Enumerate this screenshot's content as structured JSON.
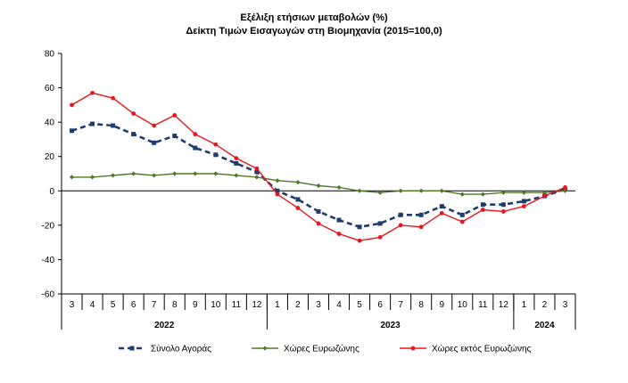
{
  "chart_data": {
    "type": "line",
    "title": "Εξέλιξη ετήσιων μεταβολών (%)",
    "subtitle": "Δείκτη Τιμών Εισαγωγών στη Βιομηχανία (2015=100,0)",
    "xlabel": "",
    "ylabel": "",
    "ylim": [
      -60,
      80
    ],
    "yticks": [
      -60,
      -40,
      -20,
      0,
      20,
      40,
      60,
      80
    ],
    "grid": false,
    "legend_position": "bottom",
    "categories": [
      "3",
      "4",
      "5",
      "6",
      "7",
      "8",
      "9",
      "10",
      "11",
      "12",
      "1",
      "2",
      "3",
      "4",
      "5",
      "6",
      "7",
      "8",
      "9",
      "10",
      "11",
      "12",
      "1",
      "2",
      "3"
    ],
    "year_groups": [
      {
        "label": "2022",
        "start": 0,
        "end": 9
      },
      {
        "label": "2023",
        "start": 10,
        "end": 21
      },
      {
        "label": "2024",
        "start": 22,
        "end": 24
      }
    ],
    "series": [
      {
        "name": "Σύνολο Αγοράς",
        "color": "#1f3c6e",
        "style": "dashed",
        "marker": "square",
        "values": [
          35,
          39,
          38,
          33,
          28,
          32,
          25,
          21,
          16,
          11,
          0,
          -5,
          -12,
          -17,
          -21,
          -19,
          -14,
          -14,
          -9,
          -14,
          -8,
          -8,
          -6,
          -3,
          1
        ]
      },
      {
        "name": "Χώρες Ευρωζώνης",
        "color": "#4f7a28",
        "style": "solid",
        "marker": "diamond",
        "values": [
          8,
          8,
          9,
          10,
          9,
          10,
          10,
          10,
          9,
          8,
          6,
          5,
          3,
          2,
          0,
          -1,
          0,
          0,
          0,
          -2,
          -2,
          -1,
          -1,
          -1,
          0
        ]
      },
      {
        "name": "Χώρες εκτός Ευρωζώνης",
        "color": "#e8161e",
        "style": "solid",
        "marker": "circle",
        "values": [
          50,
          57,
          54,
          45,
          38,
          44,
          33,
          27,
          19,
          13,
          -2,
          -10,
          -19,
          -25,
          -29,
          -27,
          -20,
          -21,
          -13,
          -18,
          -11,
          -12,
          -9,
          -3,
          2
        ]
      }
    ]
  }
}
